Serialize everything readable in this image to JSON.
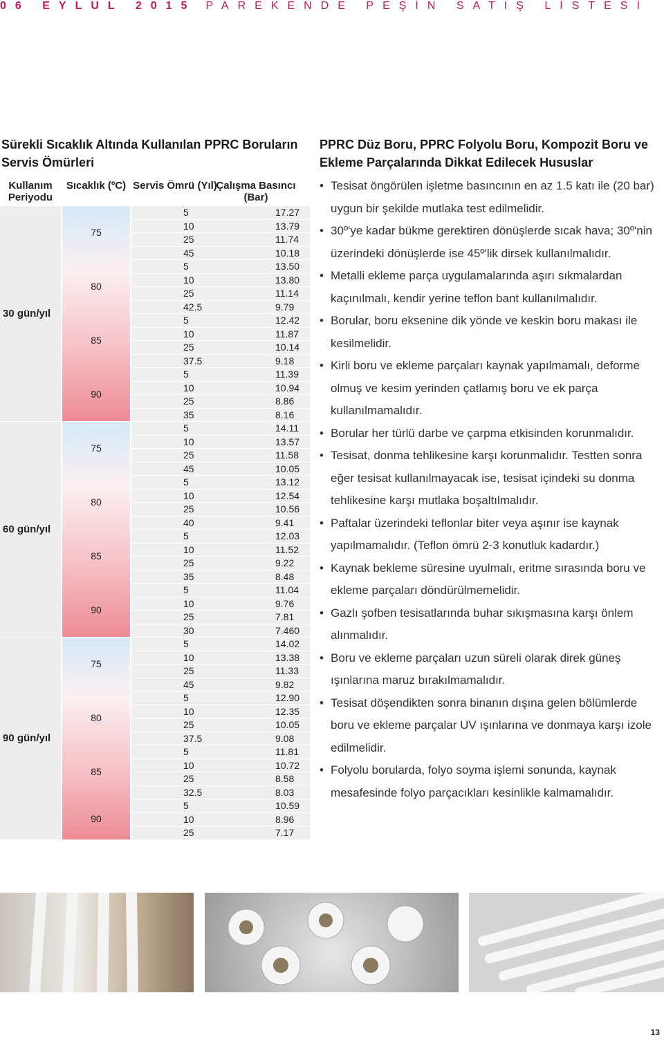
{
  "header": {
    "date": "06 EYLUL 2015",
    "title": "PAREKENDE PEŞİN SATIŞ LİSTESİ"
  },
  "left": {
    "title": "Sürekli Sıcaklık Altında Kullanılan PPRC Boruların Servis Ömürleri",
    "table": {
      "headers": [
        "Kullanım Periyodu",
        "Sıcaklık (ºC)",
        "Servis Ömrü (Yıl)",
        "Çalışma Basıncı (Bar)"
      ],
      "periods": [
        {
          "label": "30 gün/yıl",
          "groups": [
            {
              "temperature": "75",
              "rows": [
                [
                  "5",
                  "17.27"
                ],
                [
                  "10",
                  "13.79"
                ],
                [
                  "25",
                  "11.74"
                ],
                [
                  "45",
                  "10.18"
                ]
              ]
            },
            {
              "temperature": "80",
              "rows": [
                [
                  "5",
                  "13.50"
                ],
                [
                  "10",
                  "13.80"
                ],
                [
                  "25",
                  "11.14"
                ],
                [
                  "42.5",
                  "9.79"
                ]
              ]
            },
            {
              "temperature": "85",
              "rows": [
                [
                  "5",
                  "12.42"
                ],
                [
                  "10",
                  "11.87"
                ],
                [
                  "25",
                  "10.14"
                ],
                [
                  "37.5",
                  "9.18"
                ]
              ]
            },
            {
              "temperature": "90",
              "rows": [
                [
                  "5",
                  "11.39"
                ],
                [
                  "10",
                  "10.94"
                ],
                [
                  "25",
                  "8.86"
                ],
                [
                  "35",
                  "8.16"
                ]
              ]
            }
          ]
        },
        {
          "label": "60 gün/yıl",
          "groups": [
            {
              "temperature": "75",
              "rows": [
                [
                  "5",
                  "14.11"
                ],
                [
                  "10",
                  "13.57"
                ],
                [
                  "25",
                  "11.58"
                ],
                [
                  "45",
                  "10.05"
                ]
              ]
            },
            {
              "temperature": "80",
              "rows": [
                [
                  "5",
                  "13.12"
                ],
                [
                  "10",
                  "12.54"
                ],
                [
                  "25",
                  "10.56"
                ],
                [
                  "40",
                  "9.41"
                ]
              ]
            },
            {
              "temperature": "85",
              "rows": [
                [
                  "5",
                  "12.03"
                ],
                [
                  "10",
                  "11.52"
                ],
                [
                  "25",
                  "9.22"
                ],
                [
                  "35",
                  "8.48"
                ]
              ]
            },
            {
              "temperature": "90",
              "rows": [
                [
                  "5",
                  "11.04"
                ],
                [
                  "10",
                  "9.76"
                ],
                [
                  "25",
                  "7.81"
                ],
                [
                  "30",
                  "7.460"
                ]
              ]
            }
          ]
        },
        {
          "label": "90 gün/yıl",
          "groups": [
            {
              "temperature": "75",
              "rows": [
                [
                  "5",
                  "14.02"
                ],
                [
                  "10",
                  "13.38"
                ],
                [
                  "25",
                  "11.33"
                ],
                [
                  "45",
                  "9.82"
                ]
              ]
            },
            {
              "temperature": "80",
              "rows": [
                [
                  "5",
                  "12.90"
                ],
                [
                  "10",
                  "12.35"
                ],
                [
                  "25",
                  "10.05"
                ],
                [
                  "37.5",
                  "9.08"
                ]
              ]
            },
            {
              "temperature": "85",
              "rows": [
                [
                  "5",
                  "11.81"
                ],
                [
                  "10",
                  "10.72"
                ],
                [
                  "25",
                  "8.58"
                ],
                [
                  "32.5",
                  "8.03"
                ]
              ]
            },
            {
              "temperature": "90",
              "rows": [
                [
                  "5",
                  "10.59"
                ],
                [
                  "10",
                  "8.96"
                ],
                [
                  "25",
                  "7.17"
                ]
              ]
            }
          ]
        }
      ]
    }
  },
  "right": {
    "title": "PPRC Düz Boru, PPRC Folyolu Boru, Kompozit Boru ve Ekleme Parçalarında Dikkat Edilecek Hususlar",
    "bullets": [
      "Tesisat öngörülen işletme basıncının en az 1.5 katı ile (20 bar) uygun bir şekilde mutlaka test edilmelidir.",
      "30º'ye kadar bükme gerektiren dönüşlerde sıcak hava; 30º'nin üzerindeki dönüşlerde ise 45º'lik dirsek kullanılmalıdır.",
      "Metalli ekleme parça uygulamalarında aşırı sıkmalardan kaçınılmalı, kendir yerine teflon bant kullanılmalıdır.",
      "Borular, boru eksenine dik yönde ve keskin boru makası ile kesilmelidir.",
      "Kirli boru ve ekleme parçaları kaynak yapılmamalı, deforme olmuş ve kesim yerinden çatlamış boru ve ek parça kullanılmamalıdır.",
      "Borular her türlü darbe ve çarpma etkisinden korunmalıdır.",
      "Tesisat, donma tehlikesine karşı korunmalıdır. Testten sonra eğer tesisat kullanılmayacak ise, tesisat içindeki su donma tehlikesine karşı mutlaka boşaltılmalıdır.",
      "Paftalar üzerindeki teflonlar biter veya aşınır ise kaynak yapılmamalıdır. (Teflon ömrü 2-3 konutluk kadardır.)",
      "Kaynak bekleme süresine uyulmalı, eritme sırasında boru ve ekleme parçaları döndürülmemelidir.",
      "Gazlı şofben tesisatlarında buhar sıkışmasına karşı önlem alınmalıdır.",
      "Boru ve ekleme parçaları uzun süreli olarak direk güneş ışınlarına maruz bırakılmamalıdır.",
      "Tesisat döşendikten sonra binanın dışına gelen bölümlerde boru ve ekleme parçalar UV ışınlarına ve donmaya karşı izole edilmelidir.",
      "Folyolu borularda, folyo soyma işlemi sonunda, kaynak mesafesinde folyo parçacıkları kesinlikle kalmamalıdır."
    ]
  },
  "page_number": "13"
}
